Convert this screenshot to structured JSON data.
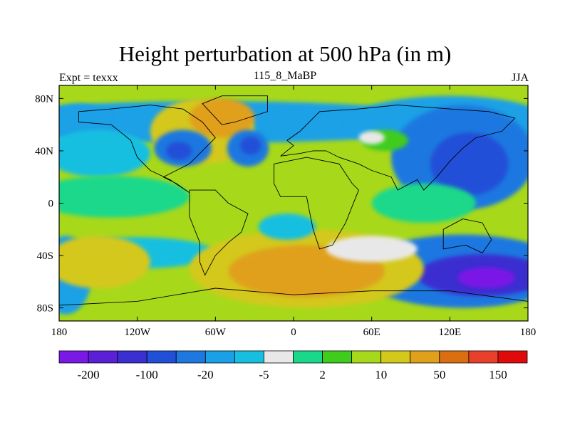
{
  "chart_data": {
    "type": "heatmap",
    "title": "Height perturbation at 500 hPa (in m)",
    "left_string": "Expt = texxx",
    "center_string": "115_8_MaBP",
    "right_string": "JJA",
    "x_ticks": [
      "180",
      "120W",
      "60W",
      "0",
      "60E",
      "120E",
      "180"
    ],
    "y_ticks": [
      "80N",
      "40N",
      "0",
      "40S",
      "80S"
    ],
    "xlim": [
      -180,
      180
    ],
    "ylim": [
      -90,
      90
    ],
    "colorbar": {
      "levels": [
        -200,
        -150,
        -100,
        -50,
        -20,
        -10,
        -5,
        -2,
        2,
        5,
        10,
        20,
        50,
        100,
        150,
        200
      ],
      "labels": [
        "-200",
        "-100",
        "-20",
        "-5",
        "2",
        "10",
        "50",
        "150"
      ],
      "colors": [
        "#7a19e6",
        "#5a1fd6",
        "#3a2fd0",
        "#2050d8",
        "#1f78e0",
        "#1aa0e6",
        "#16bfe0",
        "#e8e8e8",
        "#1ad88a",
        "#3fcc1a",
        "#a8d81a",
        "#d4c81a",
        "#e0a01a",
        "#dc6e12",
        "#e8402a",
        "#e00a0a"
      ]
    },
    "legend": "bottom"
  }
}
